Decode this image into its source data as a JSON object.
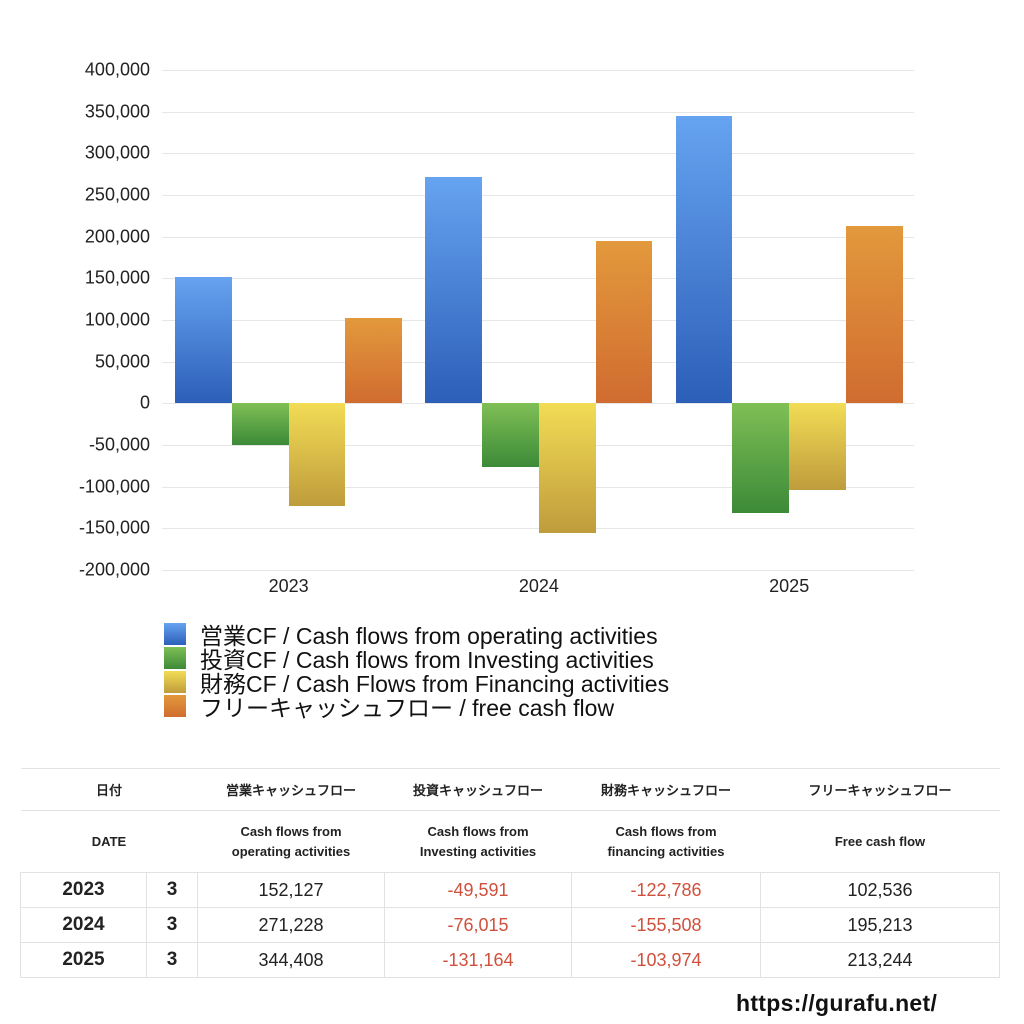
{
  "chart_data": {
    "type": "bar",
    "title": "",
    "xlabel": "",
    "ylabel": "",
    "categories": [
      "2023",
      "2024",
      "2025"
    ],
    "ylim": [
      -200000,
      400000
    ],
    "yticks": [
      "400,000",
      "350,000",
      "300,000",
      "250,000",
      "200,000",
      "150,000",
      "100,000",
      "50,000",
      "0",
      "-50,000",
      "-100,000",
      "-150,000",
      "-200,000"
    ],
    "grid": true,
    "legend_position": "bottom",
    "series": [
      {
        "name": "営業CF / Cash flows from operating activities",
        "color_top": "#66a3f0",
        "color_bottom": "#2c5fb8",
        "values": [
          152127,
          271228,
          344408
        ]
      },
      {
        "name": "投資CF / Cash flows from Investing activities",
        "color_top": "#7fbf55",
        "color_bottom": "#3c8a38",
        "values": [
          -49591,
          -76015,
          -131164
        ]
      },
      {
        "name": "財務CF / Cash Flows from Financing activities",
        "color_top": "#f2dc55",
        "color_bottom": "#bf9c3c",
        "values": [
          -122786,
          -155508,
          -103974
        ]
      },
      {
        "name": "フリーキャッシュフロー / free cash flow",
        "color_top": "#e3993c",
        "color_bottom": "#d06c30",
        "values": [
          102536,
          195213,
          213244
        ]
      }
    ]
  },
  "table": {
    "header_jp": [
      "日付",
      "",
      "営業キャッシュフロー",
      "投資キャッシュフロー",
      "財務キャッシュフロー",
      "フリーキャッシュフロー"
    ],
    "header_en": [
      "DATE",
      "",
      "Cash flows from\noperating activities",
      "Cash flows from\nInvesting activities",
      "Cash flows from\nfinancing activities",
      "Free cash flow"
    ],
    "rows": [
      {
        "year": "2023",
        "month": "3",
        "operating": "152,127",
        "investing": "-49,591",
        "financing": "-122,786",
        "free": "102,536"
      },
      {
        "year": "2024",
        "month": "3",
        "operating": "271,228",
        "investing": "-76,015",
        "financing": "-155,508",
        "free": "195,213"
      },
      {
        "year": "2025",
        "month": "3",
        "operating": "344,408",
        "investing": "-131,164",
        "financing": "-103,974",
        "free": "213,244"
      }
    ]
  },
  "footer": {
    "site_url": "https://gurafu.net/"
  },
  "colors": {
    "negative": "#d0503c",
    "grid": "#e6e6e6"
  }
}
